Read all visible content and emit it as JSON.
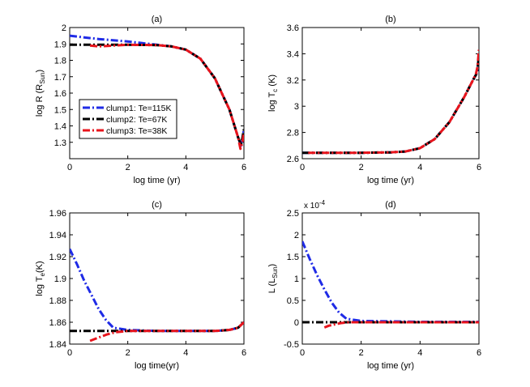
{
  "chart_data": [
    {
      "id": "a",
      "type": "line",
      "title": "(a)",
      "xlabel": "log time (yr)",
      "ylabel_main": "log R (R",
      "ylabel_sub": "Sun",
      "ylabel_tail": ")",
      "xlim": [
        0,
        6
      ],
      "ylim": [
        1.2,
        2.0
      ],
      "xticks": [
        0,
        2,
        4,
        6
      ],
      "xticklabels": [
        "0",
        "2",
        "4",
        "6"
      ],
      "yticks": [
        1.3,
        1.4,
        1.5,
        1.6,
        1.7,
        1.8,
        1.9,
        2.0
      ],
      "yticklabels": [
        "1.3",
        "1.4",
        "1.5",
        "1.6",
        "1.7",
        "1.8",
        "1.9",
        "2"
      ],
      "legend": {
        "position": "lower-left",
        "entries": [
          "clump1: Te=115K",
          "clump2: Te=67K",
          "clump3: Te=38K"
        ]
      },
      "series": [
        {
          "name": "clump1",
          "color": "#1f2be6",
          "x": [
            0,
            0.5,
            1,
            2,
            3,
            3.5,
            4,
            4.5,
            5,
            5.5,
            5.8,
            5.9,
            5.95,
            6
          ],
          "y": [
            1.95,
            1.94,
            1.93,
            1.915,
            1.895,
            1.885,
            1.865,
            1.81,
            1.69,
            1.5,
            1.33,
            1.28,
            1.32,
            1.38
          ]
        },
        {
          "name": "clump2",
          "color": "#000000",
          "x": [
            0,
            1,
            2,
            3,
            3.5,
            4,
            4.5,
            5,
            5.5,
            5.8,
            5.9,
            5.95,
            6
          ],
          "y": [
            1.895,
            1.895,
            1.895,
            1.893,
            1.885,
            1.865,
            1.81,
            1.69,
            1.5,
            1.33,
            1.285,
            1.33,
            1.38
          ]
        },
        {
          "name": "clump3",
          "color": "#e8141c",
          "x": [
            0.7,
            1,
            1.5,
            2,
            3,
            3.5,
            4,
            4.5,
            5,
            5.5,
            5.8,
            5.88,
            5.95,
            6
          ],
          "y": [
            1.89,
            1.885,
            1.89,
            1.895,
            1.893,
            1.885,
            1.865,
            1.81,
            1.69,
            1.5,
            1.33,
            1.26,
            1.3,
            1.36
          ]
        }
      ]
    },
    {
      "id": "b",
      "type": "line",
      "title": "(b)",
      "xlabel": "log time (yr)",
      "ylabel_main": "log T",
      "ylabel_sub": "c",
      "ylabel_tail": " (K)",
      "xlim": [
        0,
        6
      ],
      "ylim": [
        2.6,
        3.6
      ],
      "xticks": [
        0,
        2,
        4,
        6
      ],
      "xticklabels": [
        "0",
        "2",
        "4",
        "6"
      ],
      "yticks": [
        2.6,
        2.8,
        3.0,
        3.2,
        3.4,
        3.6
      ],
      "yticklabels": [
        "2.6",
        "2.8",
        "3",
        "3.2",
        "3.4",
        "3.6"
      ],
      "series": [
        {
          "name": "clump1",
          "color": "#1f2be6",
          "x": [
            0,
            1,
            2,
            3,
            3.5,
            4,
            4.5,
            5,
            5.5,
            5.8,
            5.9,
            5.95,
            6
          ],
          "y": [
            2.645,
            2.645,
            2.645,
            2.648,
            2.655,
            2.68,
            2.75,
            2.88,
            3.07,
            3.2,
            3.24,
            3.27,
            3.38
          ]
        },
        {
          "name": "clump2",
          "color": "#000000",
          "x": [
            0,
            1,
            2,
            3,
            3.5,
            4,
            4.5,
            5,
            5.5,
            5.8,
            5.9,
            5.95,
            6
          ],
          "y": [
            2.645,
            2.645,
            2.645,
            2.648,
            2.655,
            2.68,
            2.75,
            2.88,
            3.07,
            3.2,
            3.24,
            3.28,
            3.39
          ]
        },
        {
          "name": "clump3",
          "color": "#e8141c",
          "x": [
            0.2,
            1,
            2,
            3,
            3.5,
            4,
            4.5,
            5,
            5.5,
            5.8,
            5.9,
            5.95,
            6
          ],
          "y": [
            2.645,
            2.645,
            2.645,
            2.648,
            2.655,
            2.68,
            2.75,
            2.88,
            3.07,
            3.2,
            3.25,
            3.3,
            3.43
          ]
        }
      ]
    },
    {
      "id": "c",
      "type": "line",
      "title": "(c)",
      "xlabel": "log time(yr)",
      "ylabel_main": "log T",
      "ylabel_sub": "e",
      "ylabel_tail": "(K)",
      "xlim": [
        0,
        6
      ],
      "ylim": [
        1.84,
        1.96
      ],
      "xticks": [
        0,
        2,
        4,
        6
      ],
      "xticklabels": [
        "0",
        "2",
        "4",
        "6"
      ],
      "yticks": [
        1.84,
        1.86,
        1.88,
        1.9,
        1.92,
        1.94,
        1.96
      ],
      "yticklabels": [
        "1.84",
        "1.86",
        "1.88",
        "1.9",
        "1.92",
        "1.94",
        "1.96"
      ],
      "series": [
        {
          "name": "clump1",
          "color": "#1f2be6",
          "x": [
            0,
            0.25,
            0.5,
            0.75,
            1,
            1.25,
            1.5,
            2,
            3,
            4,
            5,
            5.5,
            5.8,
            6
          ],
          "y": [
            1.927,
            1.913,
            1.898,
            1.885,
            1.872,
            1.862,
            1.855,
            1.853,
            1.852,
            1.852,
            1.852,
            1.853,
            1.855,
            1.86
          ]
        },
        {
          "name": "clump2",
          "color": "#000000",
          "x": [
            0,
            1,
            2,
            3,
            4,
            5,
            5.5,
            5.8,
            6
          ],
          "y": [
            1.852,
            1.852,
            1.852,
            1.852,
            1.852,
            1.852,
            1.853,
            1.855,
            1.86
          ]
        },
        {
          "name": "clump3",
          "color": "#e8141c",
          "x": [
            0.7,
            1,
            1.3,
            1.6,
            2,
            3,
            4,
            5,
            5.5,
            5.8,
            6
          ],
          "y": [
            1.843,
            1.846,
            1.849,
            1.851,
            1.852,
            1.852,
            1.852,
            1.852,
            1.853,
            1.855,
            1.86
          ]
        }
      ]
    },
    {
      "id": "d",
      "type": "line",
      "title": "(d)",
      "xlabel": "log time (yr)",
      "ylabel_main": "L   (L",
      "ylabel_sub": "Sun",
      "ylabel_tail": ")",
      "exponent_label": "x 10",
      "exponent_power": "-4",
      "xlim": [
        0,
        6
      ],
      "ylim": [
        -0.5,
        2.5
      ],
      "xticks": [
        0,
        2,
        4,
        6
      ],
      "xticklabels": [
        "0",
        "2",
        "4",
        "6"
      ],
      "yticks": [
        -0.5,
        0,
        0.5,
        1.0,
        1.5,
        2.0,
        2.5
      ],
      "yticklabels": [
        "-0.5",
        "0",
        "0.5",
        "1",
        "1.5",
        "2",
        "2.5"
      ],
      "series": [
        {
          "name": "clump1",
          "color": "#1f2be6",
          "x": [
            0,
            0.25,
            0.5,
            0.75,
            1,
            1.25,
            1.5,
            2,
            3,
            4,
            5,
            6
          ],
          "y": [
            1.85,
            1.45,
            1.08,
            0.75,
            0.45,
            0.22,
            0.08,
            0.03,
            0.02,
            0.01,
            0.01,
            0.01
          ]
        },
        {
          "name": "clump2",
          "color": "#000000",
          "x": [
            0,
            1,
            2,
            3,
            4,
            5,
            6
          ],
          "y": [
            0.0,
            0.0,
            0.0,
            0.0,
            0.0,
            0.0,
            0.0
          ]
        },
        {
          "name": "clump3",
          "color": "#e8141c",
          "x": [
            0.75,
            0.9,
            1.1,
            1.3,
            1.6,
            2,
            3,
            4,
            5,
            6
          ],
          "y": [
            -0.12,
            -0.08,
            -0.05,
            -0.02,
            0.0,
            0.0,
            0.0,
            0.0,
            0.0,
            0.0
          ]
        }
      ]
    }
  ]
}
